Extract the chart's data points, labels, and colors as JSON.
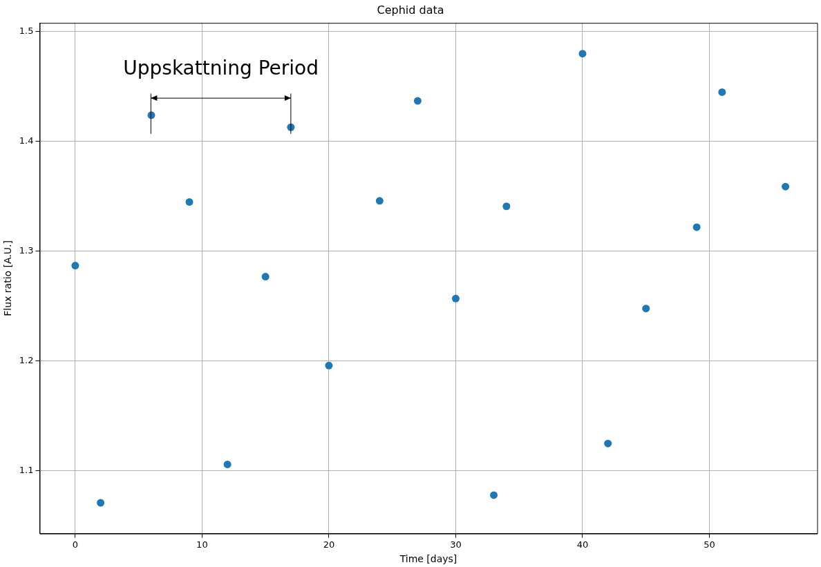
{
  "chart_data": {
    "type": "scatter",
    "title": "Cephid data",
    "xlabel": "Time [days]",
    "ylabel": "Flux ratio [A.U.]",
    "x": [
      0,
      2,
      6,
      9,
      12,
      15,
      17,
      20,
      24,
      27,
      30,
      33,
      34,
      40,
      42,
      45,
      49,
      51,
      56
    ],
    "series": [
      {
        "color": "#1f77b4",
        "values": [
          1.287,
          1.071,
          1.424,
          1.345,
          1.106,
          1.277,
          1.413,
          1.196,
          1.346,
          1.437,
          1.257,
          1.078,
          1.341,
          1.48,
          1.125,
          1.248,
          1.322,
          1.445,
          1.359
        ]
      }
    ],
    "xlim": [
      -2.8,
      58.5
    ],
    "ylim": [
      1.043,
      1.508
    ],
    "xticks": [
      0,
      10,
      20,
      30,
      40,
      50
    ],
    "yticks": [
      1.1,
      1.2,
      1.3,
      1.4,
      1.5
    ],
    "annotations": [
      {
        "text": "Uppskattning Period",
        "x": 17,
        "y": 1.413
      }
    ],
    "grid": true,
    "marker": "circle",
    "legend": false
  }
}
